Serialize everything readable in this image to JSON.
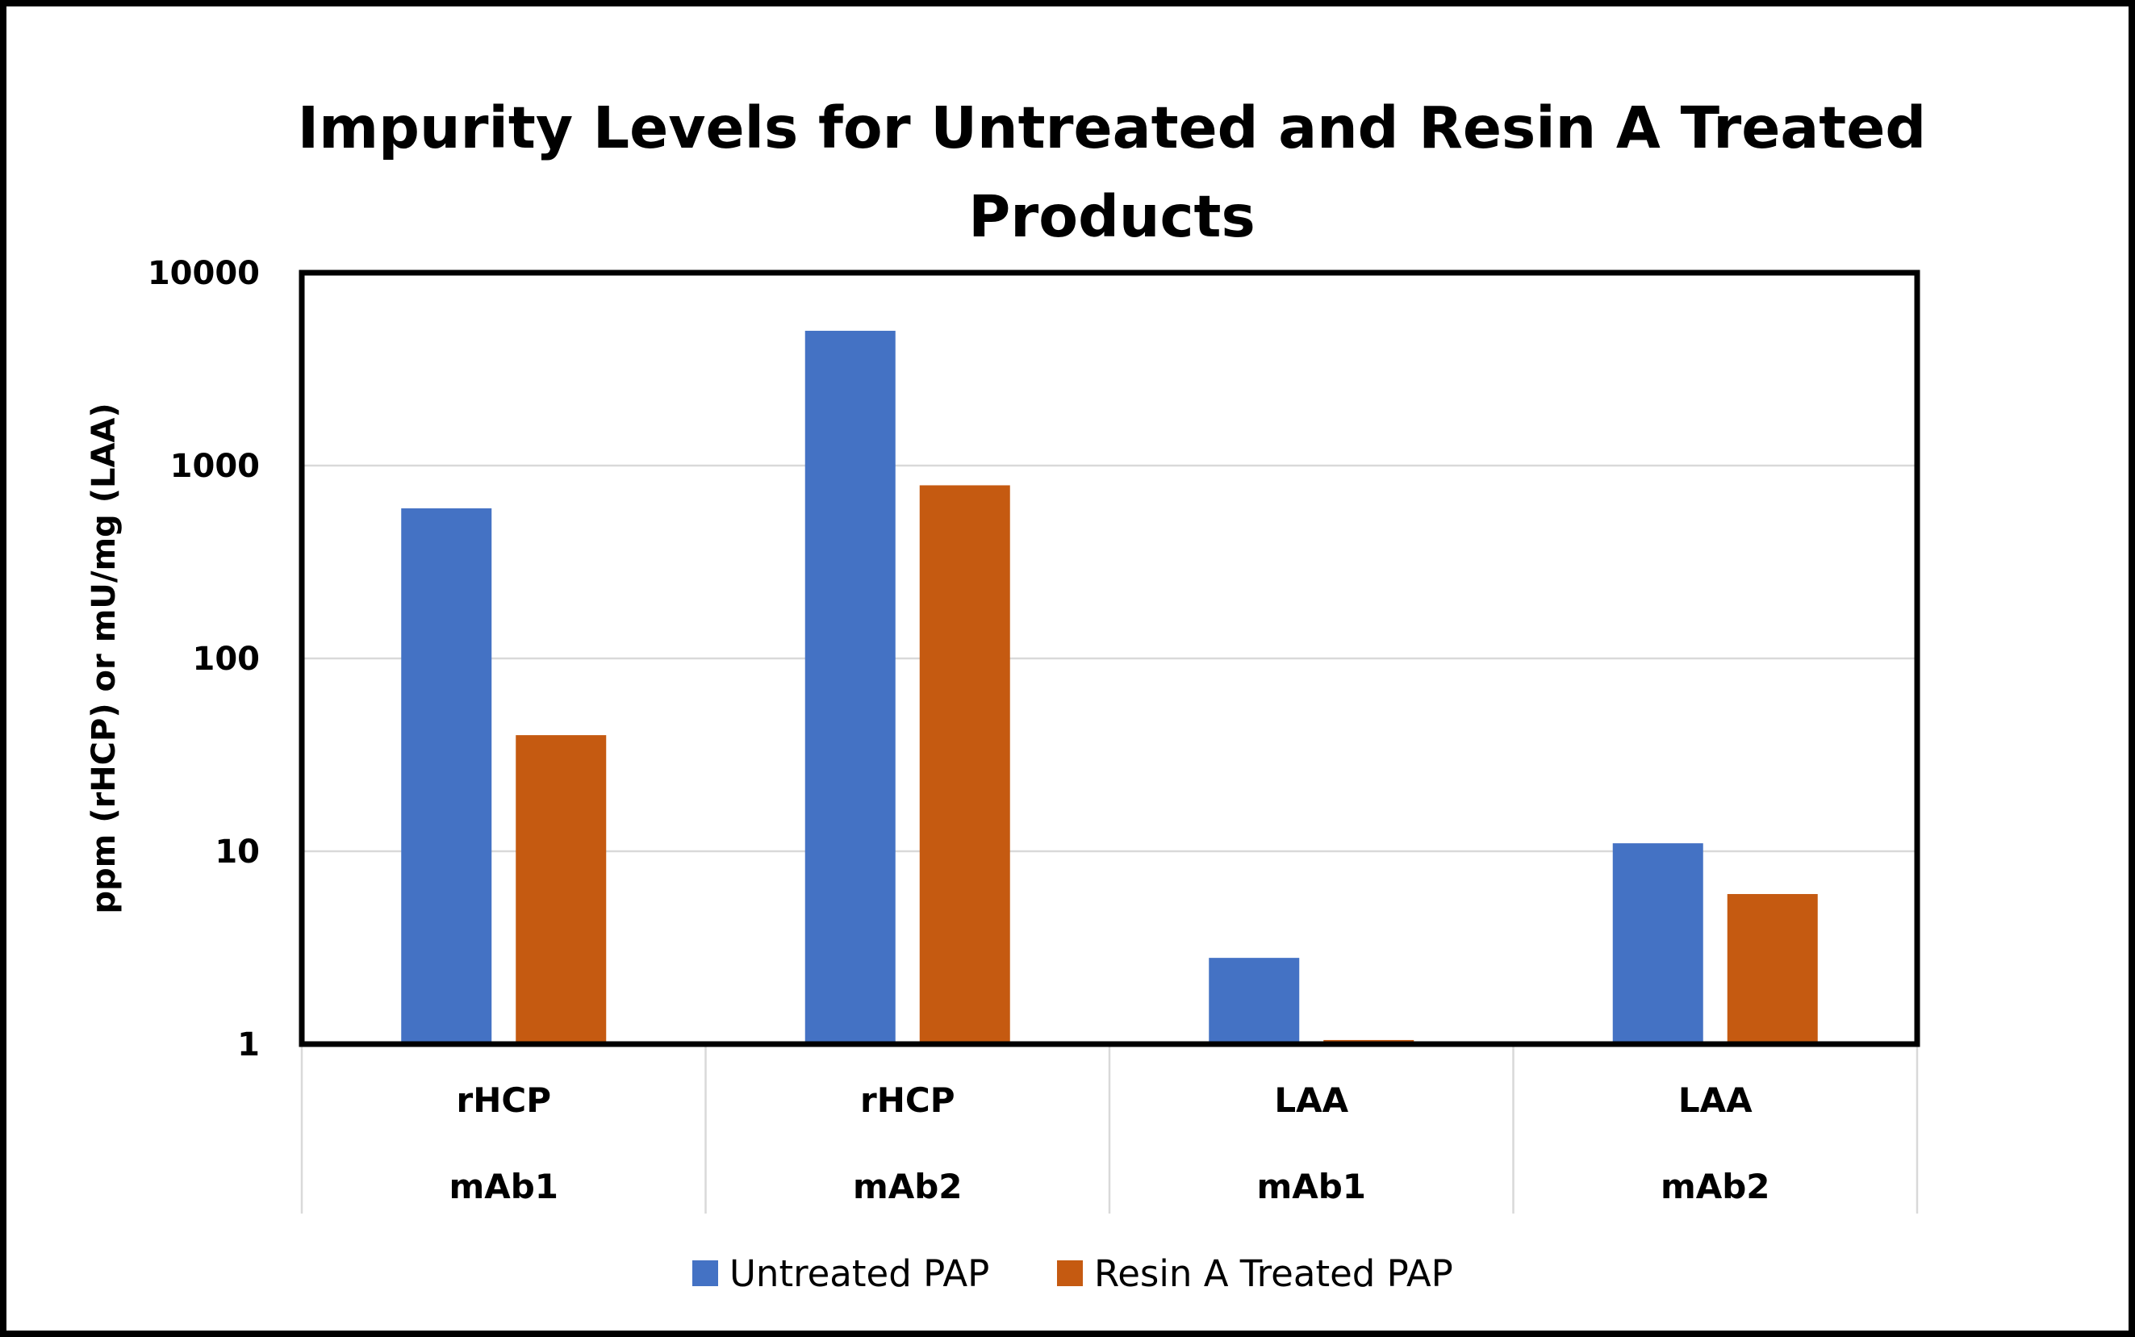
{
  "chart_data": {
    "type": "bar",
    "title": "Impurity Levels for Untreated and Resin A Treated Products",
    "title_lines": [
      "Impurity Levels for Untreated and Resin A Treated",
      "Products"
    ],
    "ylabel": "ppm (rHCP) or mU/mg (LAA)",
    "xlabel": "",
    "yscale": "log",
    "ylim": [
      1,
      10000
    ],
    "yticks": [
      1,
      10,
      100,
      1000,
      10000
    ],
    "ytick_labels": [
      "1",
      "10",
      "100",
      "1000",
      "10000"
    ],
    "grid": true,
    "legend_position": "bottom",
    "categories": [
      {
        "label": "rHCP",
        "group": "mAb1"
      },
      {
        "label": "rHCP",
        "group": "mAb2"
      },
      {
        "label": "LAA",
        "group": "mAb1"
      },
      {
        "label": "LAA",
        "group": "mAb2"
      }
    ],
    "series": [
      {
        "name": "Untreated PAP",
        "color": "#4472c4",
        "values": [
          600,
          5000,
          2.8,
          11
        ]
      },
      {
        "name": "Resin A Treated PAP",
        "color": "#c55a11",
        "values": [
          40,
          790,
          1.05,
          6
        ]
      }
    ]
  }
}
